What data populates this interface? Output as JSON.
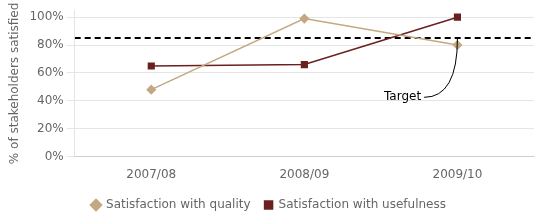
{
  "chart_data": {
    "type": "line",
    "categories": [
      "2007/08",
      "2008/09",
      "2009/10"
    ],
    "series": [
      {
        "name": "Satisfaction with quality",
        "color": "#C4A882",
        "marker": "diamond",
        "values": [
          0.48,
          0.99,
          0.8
        ]
      },
      {
        "name": "Satisfaction with usefulness",
        "color": "#6B2020",
        "marker": "square",
        "values": [
          0.65,
          0.66,
          1.0
        ]
      }
    ],
    "target": {
      "value": 0.85,
      "label": "Target",
      "color": "#000000",
      "line_style": "dashed"
    },
    "y_label": "% of stakeholders satisfied",
    "ylim": [
      0,
      1.05
    ],
    "yticks": [
      {
        "value": 0,
        "label": "0%"
      },
      {
        "value": 0.2,
        "label": "20%"
      },
      {
        "value": 0.4,
        "label": "40%"
      },
      {
        "value": 0.6,
        "label": "60%"
      },
      {
        "value": 0.8,
        "label": "80%"
      },
      {
        "value": 1.0,
        "label": "100%"
      }
    ],
    "grid": "y",
    "legend": "bottom"
  }
}
